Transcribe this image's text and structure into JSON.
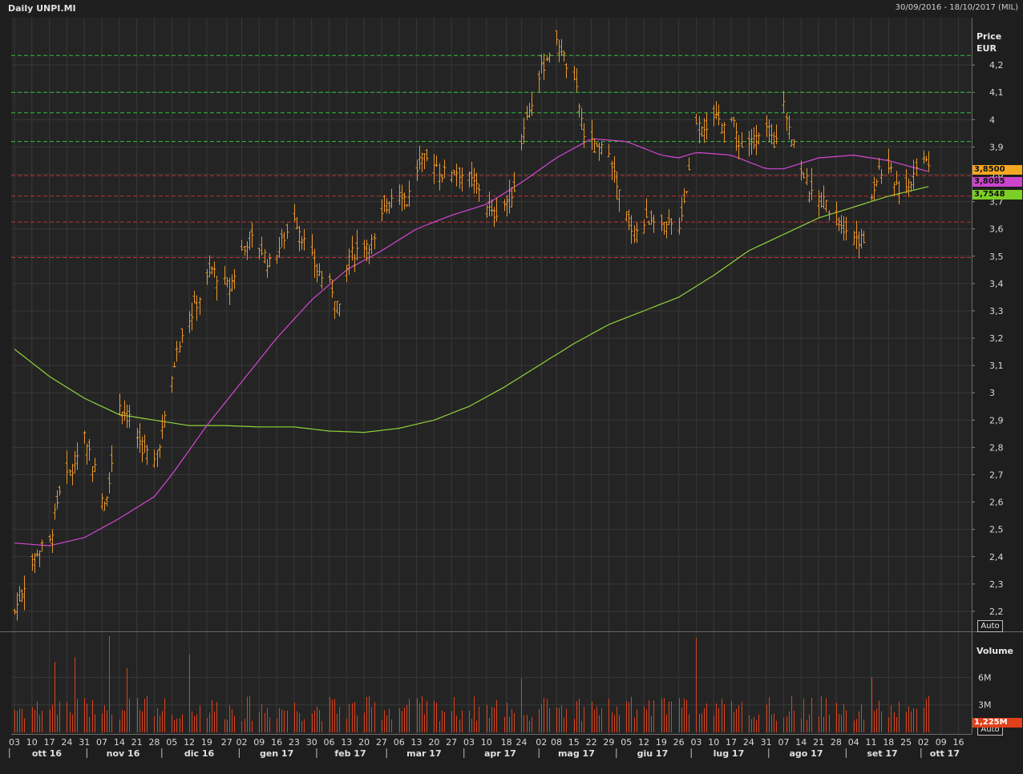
{
  "header": {
    "title": "Daily UNPI.MI",
    "range": "30/09/2016 - 18/10/2017 (MIL)"
  },
  "price_axis": {
    "title_line1": "Price",
    "title_line2": "EUR",
    "auto": "Auto"
  },
  "volume_axis": {
    "title": "Volume",
    "auto": "Auto"
  },
  "tags": {
    "last": "3,8500",
    "ma_fast": "3,8085",
    "ma_slow": "3,7548",
    "volume_last": "1,225M"
  },
  "colors": {
    "background": "#1e1e1e",
    "bars": "#e8962c",
    "ma_fast": "#d447d4",
    "ma_slow": "#8fd43a",
    "volume": "#d9431d",
    "resistance": "#2fbf3a",
    "support": "#c0322c",
    "grid": "#383838",
    "tag_last": "#f5a623",
    "tag_fast": "#cc44cc",
    "tag_slow": "#7ccf24",
    "tag_volume": "#e0401a"
  },
  "chart_data": {
    "type": "ohlc",
    "title": "Daily UNPI.MI",
    "ylabel": "Price EUR",
    "ylim": [
      2.15,
      4.35
    ],
    "yticks": [
      "2,2",
      "2,3",
      "2,4",
      "2,5",
      "2,6",
      "2,7",
      "2,8",
      "2,9",
      "3",
      "3,1",
      "3,2",
      "3,3",
      "3,4",
      "3,5",
      "3,6",
      "3,7",
      "3,8",
      "3,9",
      "4",
      "4,1",
      "4,2"
    ],
    "ytick_values": [
      2.2,
      2.3,
      2.4,
      2.5,
      2.6,
      2.7,
      2.8,
      2.9,
      3.0,
      3.1,
      3.2,
      3.3,
      3.4,
      3.5,
      3.6,
      3.7,
      3.8,
      3.9,
      4.0,
      4.1,
      4.2
    ],
    "x_range": [
      "2016-10-03",
      "2017-10-20"
    ],
    "x_day_ticks": [
      {
        "date": "2016-10-03",
        "label": "03"
      },
      {
        "date": "2016-10-10",
        "label": "10"
      },
      {
        "date": "2016-10-17",
        "label": "17"
      },
      {
        "date": "2016-10-24",
        "label": "24"
      },
      {
        "date": "2016-10-31",
        "label": "31"
      },
      {
        "date": "2016-11-07",
        "label": "07"
      },
      {
        "date": "2016-11-14",
        "label": "14"
      },
      {
        "date": "2016-11-21",
        "label": "21"
      },
      {
        "date": "2016-11-28",
        "label": "28"
      },
      {
        "date": "2016-12-05",
        "label": "05"
      },
      {
        "date": "2016-12-12",
        "label": "12"
      },
      {
        "date": "2016-12-19",
        "label": "19"
      },
      {
        "date": "2016-12-27",
        "label": "27"
      },
      {
        "date": "2017-01-02",
        "label": "02"
      },
      {
        "date": "2017-01-09",
        "label": "09"
      },
      {
        "date": "2017-01-16",
        "label": "16"
      },
      {
        "date": "2017-01-23",
        "label": "23"
      },
      {
        "date": "2017-01-30",
        "label": "30"
      },
      {
        "date": "2017-02-06",
        "label": "06"
      },
      {
        "date": "2017-02-13",
        "label": "13"
      },
      {
        "date": "2017-02-20",
        "label": "20"
      },
      {
        "date": "2017-02-27",
        "label": "27"
      },
      {
        "date": "2017-03-06",
        "label": "06"
      },
      {
        "date": "2017-03-13",
        "label": "13"
      },
      {
        "date": "2017-03-20",
        "label": "20"
      },
      {
        "date": "2017-03-27",
        "label": "27"
      },
      {
        "date": "2017-04-03",
        "label": "03"
      },
      {
        "date": "2017-04-10",
        "label": "10"
      },
      {
        "date": "2017-04-18",
        "label": "18"
      },
      {
        "date": "2017-04-24",
        "label": "24"
      },
      {
        "date": "2017-05-02",
        "label": "02"
      },
      {
        "date": "2017-05-08",
        "label": "08"
      },
      {
        "date": "2017-05-15",
        "label": "15"
      },
      {
        "date": "2017-05-22",
        "label": "22"
      },
      {
        "date": "2017-05-29",
        "label": "29"
      },
      {
        "date": "2017-06-05",
        "label": "05"
      },
      {
        "date": "2017-06-12",
        "label": "12"
      },
      {
        "date": "2017-06-19",
        "label": "19"
      },
      {
        "date": "2017-06-26",
        "label": "26"
      },
      {
        "date": "2017-07-03",
        "label": "03"
      },
      {
        "date": "2017-07-10",
        "label": "10"
      },
      {
        "date": "2017-07-17",
        "label": "17"
      },
      {
        "date": "2017-07-24",
        "label": "24"
      },
      {
        "date": "2017-07-31",
        "label": "31"
      },
      {
        "date": "2017-08-07",
        "label": "07"
      },
      {
        "date": "2017-08-14",
        "label": "14"
      },
      {
        "date": "2017-08-21",
        "label": "21"
      },
      {
        "date": "2017-08-28",
        "label": "28"
      },
      {
        "date": "2017-09-04",
        "label": "04"
      },
      {
        "date": "2017-09-11",
        "label": "11"
      },
      {
        "date": "2017-09-18",
        "label": "18"
      },
      {
        "date": "2017-09-25",
        "label": "25"
      },
      {
        "date": "2017-10-02",
        "label": "02"
      },
      {
        "date": "2017-10-09",
        "label": "09"
      },
      {
        "date": "2017-10-16",
        "label": "16"
      }
    ],
    "x_month_ticks": [
      {
        "label": "ott 16",
        "from": "2016-10-01",
        "to": "2016-10-31"
      },
      {
        "label": "nov 16",
        "from": "2016-11-01",
        "to": "2016-11-30"
      },
      {
        "label": "dic 16",
        "from": "2016-12-01",
        "to": "2016-12-31"
      },
      {
        "label": "gen 17",
        "from": "2017-01-01",
        "to": "2017-01-31"
      },
      {
        "label": "feb 17",
        "from": "2017-02-01",
        "to": "2017-02-28"
      },
      {
        "label": "mar 17",
        "from": "2017-03-01",
        "to": "2017-03-31"
      },
      {
        "label": "apr 17",
        "from": "2017-04-01",
        "to": "2017-04-30"
      },
      {
        "label": "mag 17",
        "from": "2017-05-01",
        "to": "2017-05-31"
      },
      {
        "label": "giu 17",
        "from": "2017-06-01",
        "to": "2017-06-30"
      },
      {
        "label": "lug 17",
        "from": "2017-07-01",
        "to": "2017-07-31"
      },
      {
        "label": "ago 17",
        "from": "2017-08-01",
        "to": "2017-08-31"
      },
      {
        "label": "set 17",
        "from": "2017-09-01",
        "to": "2017-09-30"
      },
      {
        "label": "ott 17",
        "from": "2017-10-01",
        "to": "2017-10-31"
      }
    ],
    "horizontal_levels": {
      "resistance": [
        4.235,
        4.1,
        4.025,
        3.92
      ],
      "support": [
        3.795,
        3.72,
        3.625,
        3.495
      ]
    },
    "price_anchors": [
      [
        "2016-10-03",
        2.2
      ],
      [
        "2016-10-07",
        2.3
      ],
      [
        "2016-10-12",
        2.42
      ],
      [
        "2016-10-17",
        2.45
      ],
      [
        "2016-10-21",
        2.65
      ],
      [
        "2016-10-26",
        2.72
      ],
      [
        "2016-10-31",
        2.85
      ],
      [
        "2016-11-04",
        2.72
      ],
      [
        "2016-11-08",
        2.58
      ],
      [
        "2016-11-11",
        2.75
      ],
      [
        "2016-11-14",
        2.96
      ],
      [
        "2016-11-18",
        2.9
      ],
      [
        "2016-11-23",
        2.8
      ],
      [
        "2016-11-28",
        2.75
      ],
      [
        "2016-12-02",
        2.9
      ],
      [
        "2016-12-07",
        3.15
      ],
      [
        "2016-12-12",
        3.27
      ],
      [
        "2016-12-16",
        3.35
      ],
      [
        "2016-12-21",
        3.45
      ],
      [
        "2016-12-28",
        3.38
      ],
      [
        "2017-01-02",
        3.52
      ],
      [
        "2017-01-05",
        3.57
      ],
      [
        "2017-01-10",
        3.52
      ],
      [
        "2017-01-13",
        3.47
      ],
      [
        "2017-01-18",
        3.55
      ],
      [
        "2017-01-23",
        3.65
      ],
      [
        "2017-01-27",
        3.55
      ],
      [
        "2017-02-01",
        3.45
      ],
      [
        "2017-02-07",
        3.38
      ],
      [
        "2017-02-10",
        3.3
      ],
      [
        "2017-02-14",
        3.5
      ],
      [
        "2017-02-20",
        3.55
      ],
      [
        "2017-02-24",
        3.55
      ],
      [
        "2017-03-01",
        3.7
      ],
      [
        "2017-03-06",
        3.75
      ],
      [
        "2017-03-09",
        3.7
      ],
      [
        "2017-03-14",
        3.85
      ],
      [
        "2017-03-20",
        3.85
      ],
      [
        "2017-03-23",
        3.8
      ],
      [
        "2017-03-28",
        3.82
      ],
      [
        "2017-04-03",
        3.78
      ],
      [
        "2017-04-07",
        3.75
      ],
      [
        "2017-04-12",
        3.65
      ],
      [
        "2017-04-18",
        3.7
      ],
      [
        "2017-04-21",
        3.75
      ],
      [
        "2017-04-25",
        3.98
      ],
      [
        "2017-05-02",
        4.18
      ],
      [
        "2017-05-05",
        4.25
      ],
      [
        "2017-05-09",
        4.28
      ],
      [
        "2017-05-12",
        4.2
      ],
      [
        "2017-05-16",
        4.1
      ],
      [
        "2017-05-19",
        3.95
      ],
      [
        "2017-05-24",
        3.88
      ],
      [
        "2017-05-29",
        3.9
      ],
      [
        "2017-06-01",
        3.75
      ],
      [
        "2017-06-05",
        3.65
      ],
      [
        "2017-06-08",
        3.58
      ],
      [
        "2017-06-12",
        3.62
      ],
      [
        "2017-06-16",
        3.65
      ],
      [
        "2017-06-20",
        3.6
      ],
      [
        "2017-06-26",
        3.62
      ],
      [
        "2017-06-29",
        3.75
      ],
      [
        "2017-07-03",
        4.0
      ],
      [
        "2017-07-07",
        3.98
      ],
      [
        "2017-07-12",
        4.0
      ],
      [
        "2017-07-17",
        4.0
      ],
      [
        "2017-07-21",
        3.9
      ],
      [
        "2017-07-25",
        3.92
      ],
      [
        "2017-07-31",
        3.95
      ],
      [
        "2017-08-03",
        3.92
      ],
      [
        "2017-08-07",
        4.05
      ],
      [
        "2017-08-10",
        3.95
      ],
      [
        "2017-08-14",
        3.82
      ],
      [
        "2017-08-18",
        3.72
      ],
      [
        "2017-08-23",
        3.7
      ],
      [
        "2017-08-28",
        3.65
      ],
      [
        "2017-09-01",
        3.6
      ],
      [
        "2017-09-05",
        3.57
      ],
      [
        "2017-09-08",
        3.55
      ],
      [
        "2017-09-11",
        3.72
      ],
      [
        "2017-09-14",
        3.82
      ],
      [
        "2017-09-19",
        3.8
      ],
      [
        "2017-09-22",
        3.75
      ],
      [
        "2017-09-27",
        3.78
      ],
      [
        "2017-10-02",
        3.88
      ],
      [
        "2017-10-04",
        3.85
      ]
    ],
    "ma_fast": [
      [
        "2016-10-03",
        2.45
      ],
      [
        "2016-10-17",
        2.44
      ],
      [
        "2016-10-31",
        2.47
      ],
      [
        "2016-11-14",
        2.54
      ],
      [
        "2016-11-28",
        2.62
      ],
      [
        "2016-12-05",
        2.7
      ],
      [
        "2016-12-19",
        2.88
      ],
      [
        "2017-01-02",
        3.04
      ],
      [
        "2017-01-16",
        3.2
      ],
      [
        "2017-01-30",
        3.34
      ],
      [
        "2017-02-13",
        3.45
      ],
      [
        "2017-02-27",
        3.52
      ],
      [
        "2017-03-13",
        3.6
      ],
      [
        "2017-03-27",
        3.65
      ],
      [
        "2017-04-10",
        3.69
      ],
      [
        "2017-04-24",
        3.77
      ],
      [
        "2017-05-08",
        3.86
      ],
      [
        "2017-05-22",
        3.93
      ],
      [
        "2017-06-05",
        3.92
      ],
      [
        "2017-06-19",
        3.87
      ],
      [
        "2017-06-26",
        3.86
      ],
      [
        "2017-07-03",
        3.88
      ],
      [
        "2017-07-17",
        3.87
      ],
      [
        "2017-07-31",
        3.82
      ],
      [
        "2017-08-07",
        3.82
      ],
      [
        "2017-08-21",
        3.86
      ],
      [
        "2017-09-04",
        3.87
      ],
      [
        "2017-09-18",
        3.85
      ],
      [
        "2017-10-04",
        3.81
      ]
    ],
    "ma_slow": [
      [
        "2016-10-03",
        3.16
      ],
      [
        "2016-10-17",
        3.06
      ],
      [
        "2016-10-31",
        2.98
      ],
      [
        "2016-11-14",
        2.92
      ],
      [
        "2016-11-28",
        2.9
      ],
      [
        "2016-12-12",
        2.88
      ],
      [
        "2016-12-26",
        2.88
      ],
      [
        "2017-01-09",
        2.875
      ],
      [
        "2017-01-23",
        2.875
      ],
      [
        "2017-02-06",
        2.86
      ],
      [
        "2017-02-20",
        2.855
      ],
      [
        "2017-03-06",
        2.87
      ],
      [
        "2017-03-20",
        2.9
      ],
      [
        "2017-04-03",
        2.95
      ],
      [
        "2017-04-17",
        3.02
      ],
      [
        "2017-05-01",
        3.1
      ],
      [
        "2017-05-15",
        3.18
      ],
      [
        "2017-05-29",
        3.25
      ],
      [
        "2017-06-12",
        3.3
      ],
      [
        "2017-06-26",
        3.35
      ],
      [
        "2017-07-10",
        3.43
      ],
      [
        "2017-07-24",
        3.52
      ],
      [
        "2017-08-07",
        3.58
      ],
      [
        "2017-08-21",
        3.64
      ],
      [
        "2017-09-04",
        3.68
      ],
      [
        "2017-09-18",
        3.72
      ],
      [
        "2017-10-04",
        3.755
      ]
    ],
    "volume": {
      "label": "Volume",
      "yticks": [
        "3M",
        "6M"
      ],
      "ytick_values": [
        3000000,
        6000000
      ],
      "ylim": [
        0,
        10500000
      ],
      "spikes": [
        [
          "2016-11-10",
          10.5
        ],
        [
          "2016-10-27",
          8.2
        ],
        [
          "2016-10-19",
          7.7
        ],
        [
          "2017-07-03",
          10.3
        ],
        [
          "2016-12-12",
          8.5
        ],
        [
          "2017-09-11",
          6.0
        ],
        [
          "2016-11-17",
          7.0
        ],
        [
          "2017-04-24",
          5.9
        ]
      ]
    }
  }
}
